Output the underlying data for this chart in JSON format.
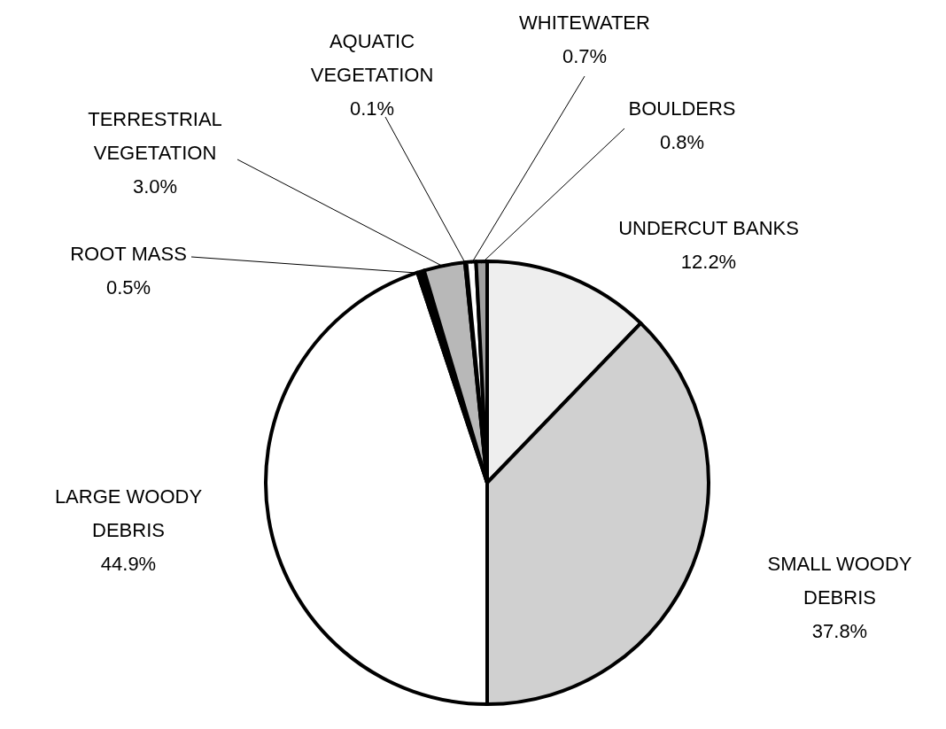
{
  "chart_data": {
    "type": "pie",
    "categories": [
      "UNDERCUT BANKS",
      "SMALL WOODY DEBRIS",
      "LARGE WOODY DEBRIS",
      "ROOT MASS",
      "TERRESTRIAL VEGETATION",
      "AQUATIC VEGETATION",
      "WHITEWATER",
      "BOULDERS"
    ],
    "values": [
      12.2,
      37.8,
      44.9,
      0.5,
      3.0,
      0.1,
      0.7,
      0.8
    ],
    "value_labels": [
      "12.2%",
      "37.8%",
      "44.9%",
      "0.5%",
      "3.0%",
      "0.1%",
      "0.7%",
      "0.8%"
    ],
    "colors": [
      "#eeeeee",
      "#d0d0d0",
      "#ffffff",
      "#000000",
      "#b8b8b8",
      "#000000",
      "#ffffff",
      "#a0a0a0"
    ]
  }
}
